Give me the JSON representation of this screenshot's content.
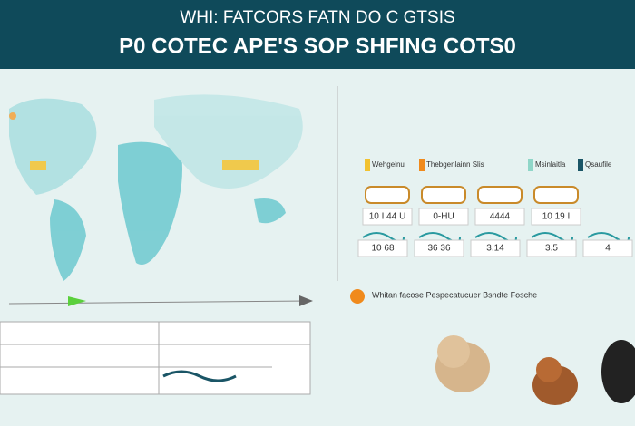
{
  "header": {
    "title_line1": "WHI: FATCORS FATN DO C GTSIS",
    "title_line2": "P0 COTEC APE'S SOP SHFING COTS0"
  },
  "legend": {
    "items": [
      "Wehgeinu",
      "Thebgenlainn Slis",
      "Msinlaitla",
      "Qsaufile"
    ]
  },
  "cards": {
    "row1": [
      "10 I 44 U",
      "0-HU",
      "4444",
      "10 19 I"
    ],
    "row2": [
      "10 68",
      "36 36",
      "3.14",
      "3.5",
      "4"
    ]
  },
  "note": "Whitan facose Pespecatucuer Bsndte Fosche"
}
